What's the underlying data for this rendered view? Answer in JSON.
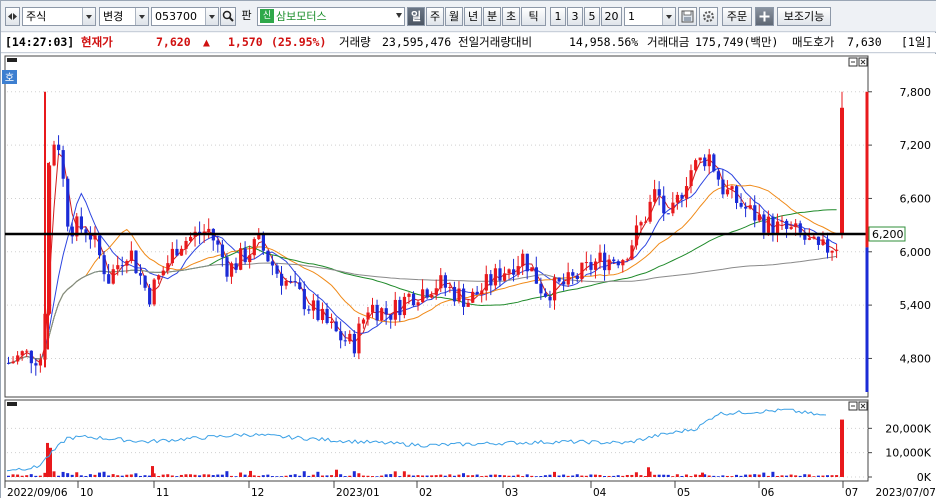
{
  "toolbar": {
    "market_label": "주식",
    "change_label": "변경",
    "stock_code": "053700",
    "search_icon": "search-icon",
    "pan_label": "판",
    "credit_badge": "신",
    "stock_name": "삼보모터스",
    "period_buttons": [
      "일",
      "주",
      "월",
      "년",
      "분",
      "초",
      "틱"
    ],
    "active_period": "일",
    "interval_buttons": [
      "1",
      "3",
      "5",
      "20"
    ],
    "interval_value": "1",
    "order_label": "주문",
    "plus_icon": "plus-icon",
    "aux_label": "보조기능",
    "save_icon": "save-icon",
    "settings_icon": "gear-icon"
  },
  "info": {
    "time": "[14:27:03]",
    "price_label": "현재가",
    "price": "7,620",
    "change_arrow": "▲",
    "change": "1,570",
    "change_pct": "(25.95%)",
    "volume_label": "거래량",
    "volume": "23,595,476",
    "prev_volume_ratio_label": "전일거래량대비",
    "prev_volume_ratio": "14,958.56%",
    "trade_amount_label": "거래대금",
    "trade_amount": "175,749(백만)",
    "ask_label": "매도호가",
    "ask_price": "7,630",
    "chart_period": "[1일]"
  },
  "price_panel": {
    "corner_label": "호",
    "y_ticks": [
      "7,800",
      "7,200",
      "6,600",
      "6,000",
      "5,400",
      "4,800"
    ],
    "horizontal_line_label": "6,200"
  },
  "volume_panel": {
    "y_ticks": [
      "20,000K",
      "10,000K",
      "0K"
    ]
  },
  "x_axis": {
    "labels": [
      "2022/09/06",
      "10",
      "11",
      "12",
      "2023/01",
      "02",
      "03",
      "04",
      "05",
      "06",
      "07",
      "2023/07/07"
    ]
  },
  "colors": {
    "up": "#e8191c",
    "down": "#1b2bd6",
    "ma_short": "#d21a1a",
    "ma_mid": "#2d45e0",
    "ma_orange": "#f08a18",
    "ma_green": "#1f8a2a",
    "ma_long": "#8a8a8a",
    "volume_ma": "#3aa0e6"
  },
  "chart_data": {
    "type": "candlestick",
    "y_range": [
      4400,
      8000
    ],
    "horizontal_line": 6200,
    "last_close": 7620,
    "last_high": 7800,
    "current_price_bar": [
      6050,
      7620
    ],
    "volume_y_range": [
      0,
      30000
    ],
    "volume_unit": "K",
    "last_volume": 23595
  }
}
